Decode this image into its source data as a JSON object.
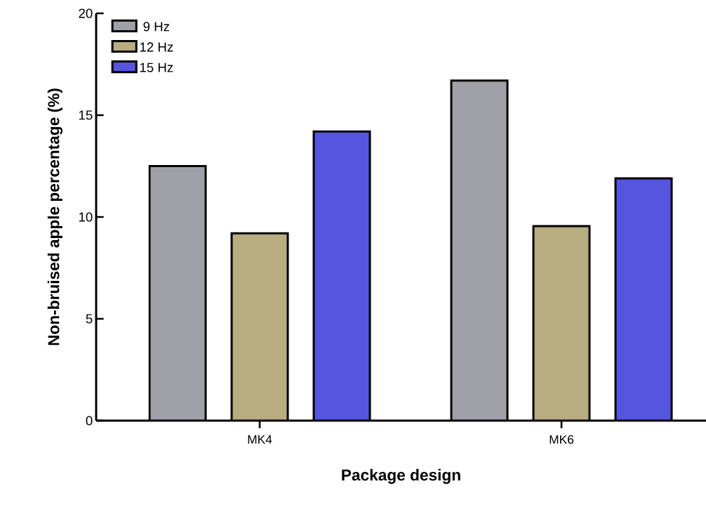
{
  "chart_data": {
    "type": "bar",
    "xlabel": "Package design",
    "ylabel": "Non-bruised apple percentage (%)",
    "categories": [
      "MK4",
      "MK6"
    ],
    "series": [
      {
        "name": "9 Hz",
        "color": "#a0a0a8",
        "values": [
          12.5,
          16.7
        ]
      },
      {
        "name": "12 Hz",
        "color": "#b8ad80",
        "values": [
          9.2,
          9.55
        ]
      },
      {
        "name": "15 Hz",
        "color": "#5555e0",
        "values": [
          14.2,
          11.9
        ]
      }
    ],
    "ylim": [
      0,
      20
    ],
    "yticks": [
      0,
      5,
      10,
      15,
      20
    ],
    "legend": "top left",
    "grid": false
  }
}
